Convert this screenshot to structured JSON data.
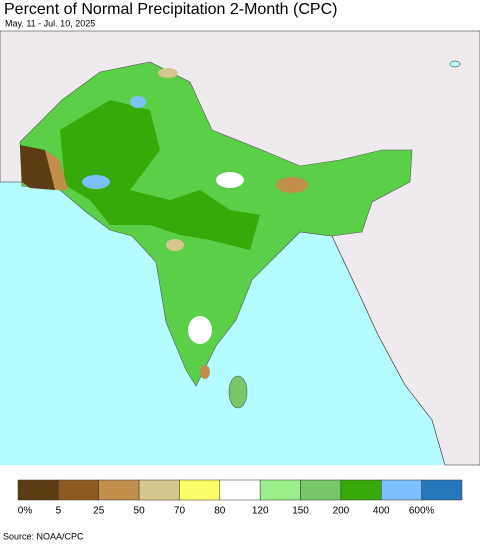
{
  "header": {
    "title": "Percent of Normal Precipitation 2-Month (CPC)",
    "subtitle": "May. 11 - Jul. 10, 2025"
  },
  "legend": {
    "colors": [
      "#5c3c12",
      "#8c5a22",
      "#c28e4c",
      "#d6c690",
      "#ffff66",
      "#ffffff",
      "#9cf08c",
      "#78c86a",
      "#36aa08",
      "#7cc0ff",
      "#2678bc"
    ],
    "labels": [
      "0%",
      "5",
      "25",
      "50",
      "70",
      "80",
      "120",
      "150",
      "200",
      "400",
      "600%"
    ]
  },
  "footer": {
    "source": "Source: NOAA/CPC"
  }
}
